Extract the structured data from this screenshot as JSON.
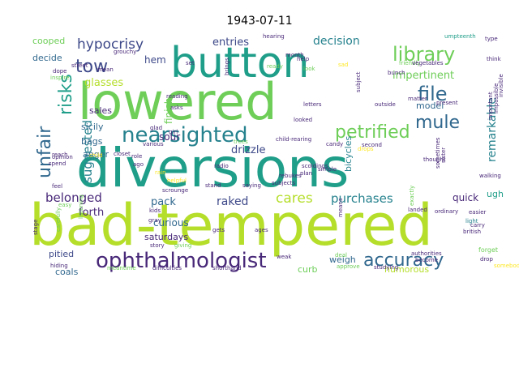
{
  "title": "1943-07-11",
  "palette": {
    "teal": "#1f9e89",
    "lime": "#b5de2b",
    "green": "#6ece58",
    "blue": "#3e4989",
    "purple": "#482878",
    "sea": "#26828e",
    "yellow": "#fde725",
    "slate": "#31688e"
  },
  "words": [
    {
      "text": "bad-tempered",
      "color": "lime"
    },
    {
      "text": "diversions",
      "color": "teal"
    },
    {
      "text": "lowered",
      "color": "green"
    },
    {
      "text": "button",
      "color": "teal"
    },
    {
      "text": "nearsighted",
      "color": "sea"
    },
    {
      "text": "ophthalmologist",
      "color": "purple"
    },
    {
      "text": "accuracy",
      "color": "slate"
    },
    {
      "text": "petrified",
      "color": "green"
    },
    {
      "text": "library",
      "color": "green"
    },
    {
      "text": "file",
      "color": "slate"
    },
    {
      "text": "mule",
      "color": "slate"
    },
    {
      "text": "unfair",
      "color": "slate"
    },
    {
      "text": "risks",
      "color": "teal"
    },
    {
      "text": "tow",
      "color": "blue"
    },
    {
      "text": "hypocrisy",
      "color": "blue"
    },
    {
      "text": "cares",
      "color": "lime"
    },
    {
      "text": "purchases",
      "color": "sea"
    },
    {
      "text": "suggested",
      "color": "sea"
    },
    {
      "text": "belonged",
      "color": "purple"
    },
    {
      "text": "raked",
      "color": "blue"
    },
    {
      "text": "entries",
      "color": "blue"
    },
    {
      "text": "decision",
      "color": "sea"
    },
    {
      "text": "impertinent",
      "color": "green"
    },
    {
      "text": "remarkable",
      "color": "sea"
    },
    {
      "text": "drizzle",
      "color": "blue"
    },
    {
      "text": "forth",
      "color": "purple"
    },
    {
      "text": "glasses",
      "color": "lime"
    },
    {
      "text": "pack",
      "color": "slate"
    },
    {
      "text": "quick",
      "color": "purple"
    },
    {
      "text": "humorous",
      "color": "lime"
    },
    {
      "text": "saturdays",
      "color": "purple"
    },
    {
      "text": "curious",
      "color": "slate"
    },
    {
      "text": "pitied",
      "color": "blue"
    },
    {
      "text": "coals",
      "color": "slate"
    },
    {
      "text": "weigh",
      "color": "slate"
    },
    {
      "text": "curb",
      "color": "green"
    },
    {
      "text": "finish.",
      "color": "green"
    },
    {
      "text": "bicycles",
      "color": "sea"
    },
    {
      "text": "hem",
      "color": "blue"
    },
    {
      "text": "sour",
      "color": "purple"
    },
    {
      "text": "model",
      "color": "slate"
    },
    {
      "text": "cooped",
      "color": "green"
    },
    {
      "text": "decide",
      "color": "slate"
    },
    {
      "text": "sales",
      "color": "purple"
    },
    {
      "text": "sicily",
      "color": "slate"
    },
    {
      "text": "anger",
      "color": "slate"
    },
    {
      "text": "bags",
      "color": "slate"
    },
    {
      "text": "ugh",
      "color": "teal"
    },
    {
      "text": "umpteenth",
      "color": "teal"
    },
    {
      "text": "type",
      "color": "purple"
    },
    {
      "text": "hearing",
      "color": "purple"
    },
    {
      "text": "think",
      "color": "purple"
    },
    {
      "text": "friendly",
      "color": "green"
    },
    {
      "text": "vegetables",
      "color": "purple"
    },
    {
      "text": "street",
      "color": "purple"
    },
    {
      "text": "grouchy",
      "color": "purple"
    },
    {
      "text": "month",
      "color": "purple"
    },
    {
      "text": "help",
      "color": "purple"
    },
    {
      "text": "looked",
      "color": "purple"
    },
    {
      "text": "child-rearing",
      "color": "purple"
    },
    {
      "text": "rebukes",
      "color": "purple"
    },
    {
      "text": "plan",
      "color": "purple"
    },
    {
      "text": "outside",
      "color": "purple"
    },
    {
      "text": "letters",
      "color": "purple"
    },
    {
      "text": "second",
      "color": "purple"
    },
    {
      "text": "british",
      "color": "purple"
    },
    {
      "text": "walking",
      "color": "purple"
    },
    {
      "text": "light",
      "color": "sea"
    },
    {
      "text": "easier",
      "color": "purple"
    },
    {
      "text": "carry",
      "color": "purple"
    },
    {
      "text": "drop",
      "color": "purple"
    },
    {
      "text": "forget",
      "color": "green"
    },
    {
      "text": "somebody",
      "color": "yellow"
    },
    {
      "text": "studying",
      "color": "purple"
    },
    {
      "text": "approve",
      "color": "green"
    },
    {
      "text": "subjects",
      "color": "purple"
    },
    {
      "text": "difficulties",
      "color": "purple"
    },
    {
      "text": "shorthand",
      "color": "purple"
    },
    {
      "text": "meantime",
      "color": "green"
    },
    {
      "text": "hiding",
      "color": "purple"
    },
    {
      "text": "story",
      "color": "purple"
    },
    {
      "text": "giving",
      "color": "green"
    },
    {
      "text": "kids",
      "color": "purple"
    },
    {
      "text": "gets",
      "color": "purple"
    },
    {
      "text": "ages",
      "color": "purple"
    },
    {
      "text": "radio",
      "color": "purple"
    },
    {
      "text": "stand",
      "color": "purple"
    },
    {
      "text": "saying",
      "color": "purple"
    },
    {
      "text": "scrounge",
      "color": "purple"
    },
    {
      "text": "various",
      "color": "purple"
    },
    {
      "text": "ago",
      "color": "purple"
    },
    {
      "text": "role",
      "color": "purple"
    },
    {
      "text": "girl",
      "color": "purple"
    },
    {
      "text": "asks",
      "color": "purple"
    },
    {
      "text": "reading",
      "color": "purple"
    },
    {
      "text": "brings",
      "color": "purple"
    },
    {
      "text": "ready",
      "color": "green"
    },
    {
      "text": "set",
      "color": "purple"
    },
    {
      "text": "mean",
      "color": "purple"
    },
    {
      "text": "dope",
      "color": "purple"
    },
    {
      "text": "inspire",
      "color": "green"
    },
    {
      "text": "opinion",
      "color": "purple"
    },
    {
      "text": "spend",
      "color": "purple"
    },
    {
      "text": "feel",
      "color": "purple"
    },
    {
      "text": "easy",
      "color": "green"
    },
    {
      "text": "listening",
      "color": "green"
    },
    {
      "text": "carefully",
      "color": "green"
    },
    {
      "text": "closet",
      "color": "purple"
    },
    {
      "text": "child",
      "color": "yellow"
    },
    {
      "text": "reach",
      "color": "purple"
    },
    {
      "text": "simple",
      "color": "purple"
    },
    {
      "text": "scoldings",
      "color": "purple"
    },
    {
      "text": "thought",
      "color": "purple"
    },
    {
      "text": "sometimes",
      "color": "purple"
    },
    {
      "text": "become",
      "color": "purple"
    },
    {
      "text": "authorities",
      "color": "purple"
    },
    {
      "text": "landed",
      "color": "purple"
    },
    {
      "text": "ordinary",
      "color": "purple"
    },
    {
      "text": "present",
      "color": "purple"
    },
    {
      "text": "important",
      "color": "purple"
    },
    {
      "text": "matter",
      "color": "purple"
    },
    {
      "text": "bunch",
      "color": "purple"
    },
    {
      "text": "subject",
      "color": "purple"
    },
    {
      "text": "sister",
      "color": "purple"
    },
    {
      "text": "means",
      "color": "purple"
    },
    {
      "text": "weak",
      "color": "purple"
    },
    {
      "text": "deal",
      "color": "green"
    },
    {
      "text": "stage",
      "color": "purple"
    },
    {
      "text": "trees",
      "color": "green"
    },
    {
      "text": "rain",
      "color": "yellow"
    },
    {
      "text": "helpful",
      "color": "yellow"
    },
    {
      "text": "gray",
      "color": "purple"
    },
    {
      "text": "glad",
      "color": "purple"
    },
    {
      "text": "exactly",
      "color": "green"
    },
    {
      "text": "sad",
      "color": "yellow"
    },
    {
      "text": "look",
      "color": "green"
    },
    {
      "text": "drops",
      "color": "yellow"
    },
    {
      "text": "candy",
      "color": "purple"
    },
    {
      "text": "invisible",
      "color": "purple"
    },
    {
      "text": "impossible",
      "color": "purple"
    }
  ]
}
